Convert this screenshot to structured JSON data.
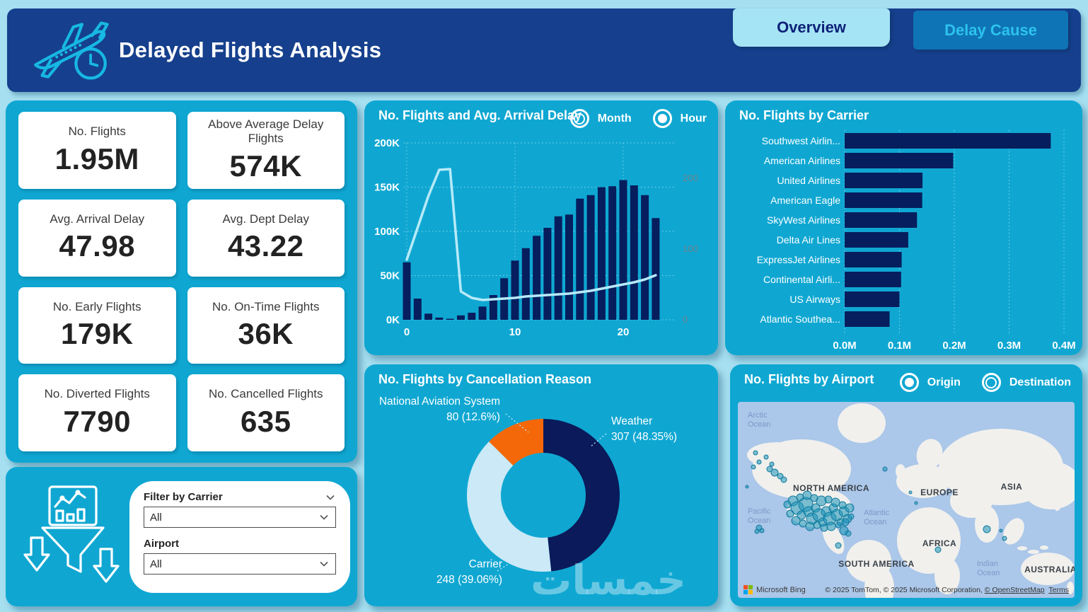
{
  "page": {
    "watermark": "خمسات"
  },
  "colors": {
    "page_bg": "#a6dff0",
    "panel_cyan": "#0fa7d2",
    "header_navy": "#16408d",
    "bar_navy": "#061e5e",
    "line_light": "#b7eaf8",
    "donut_navy": "#0a1a5a",
    "donut_lightblue": "#cbe9f6",
    "donut_orange": "#f4680a",
    "tab_active_bg": "#a5e4f4",
    "tab_inactive_bg": "#0f74b5",
    "tab_inactive_text": "#2cc3ee",
    "map_ocean": "#abc7e9",
    "map_land": "#f1f0ed",
    "bubble": "#1a93b8"
  },
  "header": {
    "title": "Delayed Flights Analysis",
    "logo_icon": "airplane-clock-icon",
    "tabs": [
      {
        "label": "Overview",
        "active": true
      },
      {
        "label": "Delay Cause",
        "active": false
      }
    ]
  },
  "kpis": [
    {
      "label": "No. Flights",
      "value": "1.95M"
    },
    {
      "label": "Above Average Delay Flights",
      "value": "574K"
    },
    {
      "label": "Avg. Arrival Delay",
      "value": "47.98"
    },
    {
      "label": "Avg. Dept Delay",
      "value": "43.22"
    },
    {
      "label": "No. Early Flights",
      "value": "179K"
    },
    {
      "label": "No. On-Time Flights",
      "value": "36K"
    },
    {
      "label": "No. Diverted Flights",
      "value": "7790"
    },
    {
      "label": "No. Cancelled Flights",
      "value": "635"
    }
  ],
  "filter_panel": {
    "icon": "funnel-chart-icon",
    "carrier": {
      "label": "Filter by Carrier",
      "value": "All"
    },
    "airport": {
      "label": "Airport",
      "value": "All"
    }
  },
  "chart_data": [
    {
      "id": "flights_and_delay_by_hour",
      "type": "combo-bar-line",
      "title": "No. Flights and Avg. Arrival Delay",
      "toggles": [
        {
          "label": "Month",
          "selected": false
        },
        {
          "label": "Hour",
          "selected": true
        }
      ],
      "x": [
        0,
        1,
        2,
        3,
        4,
        5,
        6,
        7,
        8,
        9,
        10,
        11,
        12,
        13,
        14,
        15,
        16,
        17,
        18,
        19,
        20,
        21,
        22,
        23
      ],
      "x_ticks": [
        "0",
        "10",
        "20"
      ],
      "x_tick_hours": [
        0,
        10,
        20
      ],
      "y_left": {
        "ticks": [
          "0K",
          "50K",
          "100K",
          "150K",
          "200K"
        ],
        "max": 200000
      },
      "y_right": {
        "ticks": [
          "0",
          "100",
          "200"
        ],
        "tick_values": [
          0,
          100,
          200
        ],
        "max": 250
      },
      "grid": true,
      "legend": false,
      "series": [
        {
          "name": "No. Flights",
          "type": "bar",
          "values": [
            65000,
            24000,
            7000,
            2500,
            1200,
            5000,
            8000,
            15000,
            28000,
            47000,
            67000,
            81000,
            95000,
            104000,
            117000,
            119000,
            137000,
            141000,
            150000,
            151000,
            158000,
            152000,
            141000,
            115000
          ]
        },
        {
          "name": "Avg. Arrival Delay",
          "type": "line",
          "values": [
            85,
            130,
            175,
            212,
            213,
            40,
            31,
            28,
            29,
            30,
            31,
            33,
            34,
            35,
            36,
            37,
            39,
            41,
            44,
            47,
            50,
            53,
            57,
            63
          ]
        }
      ]
    },
    {
      "id": "flights_by_carrier",
      "type": "bar",
      "orientation": "horizontal",
      "title": "No. Flights by Carrier",
      "categories": [
        "Southwest Airlin...",
        "American Airlines",
        "United Airlines",
        "American Eagle",
        "SkyWest Airlines",
        "Delta Air Lines",
        "ExpressJet Airlines",
        "Continental Airli...",
        "US Airways",
        "Atlantic Southea..."
      ],
      "values": [
        376000,
        198000,
        142000,
        141500,
        132000,
        116000,
        104000,
        103000,
        100000,
        82000
      ],
      "x_ticks": [
        "0.0M",
        "0.1M",
        "0.2M",
        "0.3M",
        "0.4M"
      ],
      "xmax": 400000,
      "grid": true
    },
    {
      "id": "flights_by_cancellation_reason",
      "type": "pie",
      "title": "No. Flights by Cancellation Reason",
      "donut": true,
      "slices": [
        {
          "label": "Weather",
          "value": 307,
          "pct": 48.35,
          "display": "307 (48.35%)",
          "color": "#0a1a5a"
        },
        {
          "label": "Carrier",
          "value": 248,
          "pct": 39.06,
          "display": "248 (39.06%)",
          "color": "#cbe9f6"
        },
        {
          "label": "National Aviation System",
          "value": 80,
          "pct": 12.6,
          "display": "80 (12.6%)",
          "color": "#f4680a"
        }
      ]
    },
    {
      "id": "flights_by_airport",
      "type": "map",
      "title": "No. Flights by Airport",
      "toggles": [
        {
          "label": "Origin",
          "selected": true
        },
        {
          "label": "Destination",
          "selected": false
        }
      ],
      "continent_labels": [
        "NORTH AMERICA",
        "EUROPE",
        "ASIA",
        "AFRICA",
        "SOUTH AMERICA",
        "AUSTRALIA"
      ],
      "ocean_labels": [
        "Arctic Ocean",
        "Pacific Ocean",
        "Atlantic Ocean",
        "Indian Ocean"
      ],
      "bubbles": [
        [
          78,
          140,
          7
        ],
        [
          84,
          150,
          9
        ],
        [
          90,
          160,
          6
        ],
        [
          96,
          145,
          10
        ],
        [
          100,
          155,
          7
        ],
        [
          105,
          165,
          8
        ],
        [
          110,
          150,
          6
        ],
        [
          115,
          160,
          9
        ],
        [
          120,
          170,
          6
        ],
        [
          125,
          155,
          7
        ],
        [
          130,
          165,
          9
        ],
        [
          135,
          150,
          6
        ],
        [
          140,
          160,
          8
        ],
        [
          145,
          170,
          5
        ],
        [
          150,
          155,
          7
        ],
        [
          155,
          165,
          6
        ],
        [
          88,
          135,
          5
        ],
        [
          98,
          132,
          6
        ],
        [
          108,
          136,
          5
        ],
        [
          118,
          140,
          7
        ],
        [
          128,
          138,
          5
        ],
        [
          138,
          142,
          6
        ],
        [
          148,
          146,
          5
        ],
        [
          158,
          150,
          6
        ],
        [
          82,
          168,
          6
        ],
        [
          92,
          172,
          5
        ],
        [
          102,
          176,
          6
        ],
        [
          112,
          174,
          5
        ],
        [
          122,
          178,
          5
        ],
        [
          132,
          176,
          6
        ],
        [
          142,
          174,
          4
        ],
        [
          152,
          170,
          5
        ],
        [
          160,
          162,
          4
        ],
        [
          70,
          145,
          5
        ],
        [
          74,
          158,
          5
        ],
        [
          25,
          72,
          3
        ],
        [
          40,
          78,
          3
        ],
        [
          30,
          85,
          3
        ],
        [
          22,
          92,
          3
        ],
        [
          45,
          95,
          4
        ],
        [
          52,
          100,
          5
        ],
        [
          60,
          105,
          4
        ],
        [
          48,
          88,
          3
        ],
        [
          65,
          110,
          4
        ],
        [
          13,
          120,
          2
        ],
        [
          30,
          178,
          4
        ],
        [
          34,
          182,
          3
        ],
        [
          27,
          183,
          3
        ],
        [
          208,
          95,
          3
        ],
        [
          150,
          182,
          6
        ],
        [
          156,
          186,
          4
        ],
        [
          142,
          203,
          4
        ],
        [
          244,
          128,
          2
        ],
        [
          252,
          143,
          2
        ],
        [
          352,
          180,
          5
        ],
        [
          372,
          182,
          2
        ],
        [
          377,
          193,
          3
        ],
        [
          283,
          209,
          4
        ]
      ],
      "attribution": {
        "brand": "Microsoft Bing",
        "text": "© 2025 TomTom, © 2025 Microsoft Corporation, ",
        "osm_link": "© OpenStreetMap",
        "terms_link": "Terms"
      }
    }
  ]
}
